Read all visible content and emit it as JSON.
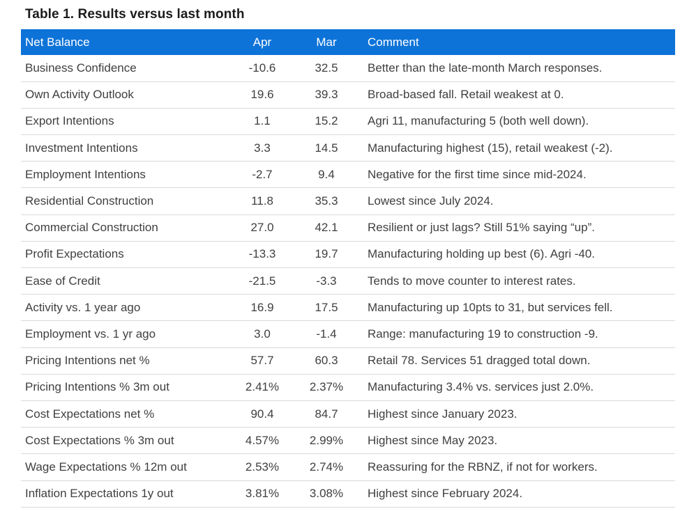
{
  "title": "Table 1. Results versus last month",
  "colors": {
    "header_bg": "#0d73d8",
    "header_text": "#ffffff",
    "body_text": "#3f3f3f",
    "divider": "#d9d9d9"
  },
  "table": {
    "headers": {
      "metric": "Net Balance",
      "apr": "Apr",
      "mar": "Mar",
      "comment": "Comment"
    },
    "rows": [
      {
        "metric": "Business Confidence",
        "apr": "-10.6",
        "mar": "32.5",
        "comment": "Better than the late-month March responses."
      },
      {
        "metric": "Own Activity Outlook",
        "apr": "19.6",
        "mar": "39.3",
        "comment": "Broad-based fall. Retail weakest at 0."
      },
      {
        "metric": "Export Intentions",
        "apr": "1.1",
        "mar": "15.2",
        "comment": "Agri 11, manufacturing 5 (both well down)."
      },
      {
        "metric": "Investment Intentions",
        "apr": "3.3",
        "mar": "14.5",
        "comment": "Manufacturing highest (15), retail weakest (-2)."
      },
      {
        "metric": "Employment Intentions",
        "apr": "-2.7",
        "mar": "9.4",
        "comment": "Negative for the first time since mid-2024."
      },
      {
        "metric": "Residential Construction",
        "apr": "11.8",
        "mar": "35.3",
        "comment": "Lowest since July 2024."
      },
      {
        "metric": "Commercial Construction",
        "apr": "27.0",
        "mar": "42.1",
        "comment": "Resilient or just lags? Still 51% saying “up”."
      },
      {
        "metric": "Profit Expectations",
        "apr": "-13.3",
        "mar": "19.7",
        "comment": "Manufacturing holding up best (6). Agri -40."
      },
      {
        "metric": "Ease of Credit",
        "apr": "-21.5",
        "mar": "-3.3",
        "comment": "Tends to move counter to interest rates."
      },
      {
        "metric": "Activity vs. 1 year ago",
        "apr": "16.9",
        "mar": "17.5",
        "comment": "Manufacturing up 10pts to 31, but services fell."
      },
      {
        "metric": "Employment vs. 1 yr ago",
        "apr": "3.0",
        "mar": "-1.4",
        "comment": "Range: manufacturing 19 to construction -9."
      },
      {
        "metric": "Pricing Intentions net %",
        "apr": "57.7",
        "mar": "60.3",
        "comment": "Retail 78. Services 51 dragged total down."
      },
      {
        "metric": "Pricing Intentions % 3m out",
        "apr": "2.41%",
        "mar": "2.37%",
        "comment": "Manufacturing 3.4% vs. services just 2.0%."
      },
      {
        "metric": "Cost Expectations net %",
        "apr": "90.4",
        "mar": "84.7",
        "comment": "Highest since January 2023."
      },
      {
        "metric": "Cost Expectations % 3m out",
        "apr": "4.57%",
        "mar": "2.99%",
        "comment": "Highest since May 2023."
      },
      {
        "metric": "Wage Expectations % 12m out",
        "apr": "2.53%",
        "mar": "2.74%",
        "comment": "Reassuring for the RBNZ, if not for workers."
      },
      {
        "metric": "Inflation Expectations 1y out",
        "apr": "3.81%",
        "mar": "3.08%",
        "comment": "Highest since February 2024."
      }
    ]
  }
}
